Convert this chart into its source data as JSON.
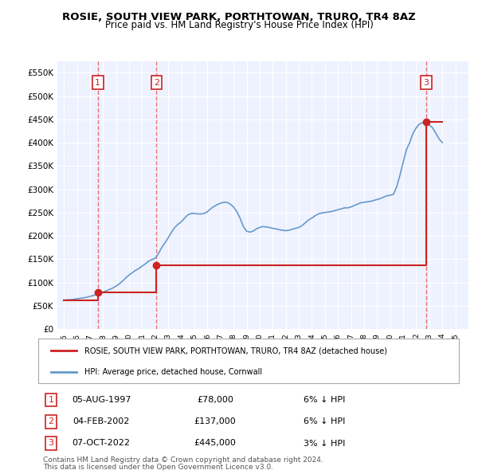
{
  "title": "ROSIE, SOUTH VIEW PARK, PORTHTOWAN, TRURO, TR4 8AZ",
  "subtitle": "Price paid vs. HM Land Registry's House Price Index (HPI)",
  "hpi_label": "HPI: Average price, detached house, Cornwall",
  "property_label": "ROSIE, SOUTH VIEW PARK, PORTHTOWAN, TRURO, TR4 8AZ (detached house)",
  "footer1": "Contains HM Land Registry data © Crown copyright and database right 2024.",
  "footer2": "This data is licensed under the Open Government Licence v3.0.",
  "sales": [
    {
      "num": 1,
      "date": "05-AUG-1997",
      "price": 78000,
      "hpi_diff": "6% ↓ HPI",
      "year": 1997.6
    },
    {
      "num": 2,
      "date": "04-FEB-2002",
      "price": 137000,
      "hpi_diff": "6% ↓ HPI",
      "year": 2002.1
    },
    {
      "num": 3,
      "date": "07-OCT-2022",
      "price": 445000,
      "hpi_diff": "3% ↓ HPI",
      "year": 2022.75
    }
  ],
  "hpi_color": "#6699cc",
  "property_color": "#cc2222",
  "vline_color": "#e87070",
  "background_plot": "#eef2ff",
  "background_fig": "#ffffff",
  "ylim": [
    0,
    575000
  ],
  "xlim_start": 1994.5,
  "xlim_end": 2026.0,
  "yticks": [
    0,
    50000,
    100000,
    150000,
    200000,
    250000,
    300000,
    350000,
    400000,
    450000,
    500000,
    550000
  ],
  "ytick_labels": [
    "£0",
    "£50K",
    "£100K",
    "£150K",
    "£200K",
    "£250K",
    "£300K",
    "£350K",
    "£400K",
    "£450K",
    "£500K",
    "£550K"
  ],
  "hpi_data_x": [
    1995.0,
    1995.25,
    1995.5,
    1995.75,
    1996.0,
    1996.25,
    1996.5,
    1996.75,
    1997.0,
    1997.25,
    1997.5,
    1997.75,
    1998.0,
    1998.25,
    1998.5,
    1998.75,
    1999.0,
    1999.25,
    1999.5,
    1999.75,
    2000.0,
    2000.25,
    2000.5,
    2000.75,
    2001.0,
    2001.25,
    2001.5,
    2001.75,
    2002.0,
    2002.25,
    2002.5,
    2002.75,
    2003.0,
    2003.25,
    2003.5,
    2003.75,
    2004.0,
    2004.25,
    2004.5,
    2004.75,
    2005.0,
    2005.25,
    2005.5,
    2005.75,
    2006.0,
    2006.25,
    2006.5,
    2006.75,
    2007.0,
    2007.25,
    2007.5,
    2007.75,
    2008.0,
    2008.25,
    2008.5,
    2008.75,
    2009.0,
    2009.25,
    2009.5,
    2009.75,
    2010.0,
    2010.25,
    2010.5,
    2010.75,
    2011.0,
    2011.25,
    2011.5,
    2011.75,
    2012.0,
    2012.25,
    2012.5,
    2012.75,
    2013.0,
    2013.25,
    2013.5,
    2013.75,
    2014.0,
    2014.25,
    2014.5,
    2014.75,
    2015.0,
    2015.25,
    2015.5,
    2015.75,
    2016.0,
    2016.25,
    2016.5,
    2016.75,
    2017.0,
    2017.25,
    2017.5,
    2017.75,
    2018.0,
    2018.25,
    2018.5,
    2018.75,
    2019.0,
    2019.25,
    2019.5,
    2019.75,
    2020.0,
    2020.25,
    2020.5,
    2020.75,
    2021.0,
    2021.25,
    2021.5,
    2021.75,
    2022.0,
    2022.25,
    2022.5,
    2022.75,
    2023.0,
    2023.25,
    2023.5,
    2023.75,
    2024.0
  ],
  "hpi_data_y": [
    62000,
    62500,
    63000,
    63500,
    65000,
    66000,
    67000,
    68000,
    70000,
    72000,
    74000,
    76000,
    79000,
    82000,
    85000,
    88000,
    92000,
    97000,
    103000,
    110000,
    116000,
    121000,
    126000,
    130000,
    135000,
    140000,
    146000,
    149000,
    152000,
    162000,
    175000,
    185000,
    196000,
    208000,
    218000,
    225000,
    230000,
    238000,
    245000,
    248000,
    248000,
    247000,
    247000,
    248000,
    252000,
    258000,
    263000,
    267000,
    270000,
    272000,
    272000,
    268000,
    262000,
    252000,
    238000,
    220000,
    210000,
    208000,
    210000,
    215000,
    218000,
    220000,
    219000,
    218000,
    216000,
    215000,
    213000,
    212000,
    211000,
    212000,
    214000,
    216000,
    218000,
    222000,
    228000,
    234000,
    238000,
    243000,
    247000,
    249000,
    250000,
    251000,
    252000,
    254000,
    256000,
    258000,
    260000,
    260000,
    262000,
    265000,
    268000,
    271000,
    272000,
    273000,
    274000,
    276000,
    278000,
    280000,
    283000,
    286000,
    287000,
    289000,
    305000,
    330000,
    358000,
    385000,
    400000,
    420000,
    432000,
    440000,
    443000,
    448000,
    438000,
    432000,
    420000,
    408000,
    400000
  ],
  "property_data_x": [
    1995.0,
    1997.6,
    1997.6,
    2002.1,
    2002.1,
    2022.75,
    2022.75,
    2024.0
  ],
  "property_data_y": [
    62000,
    62000,
    78000,
    78000,
    137000,
    137000,
    445000,
    445000
  ]
}
